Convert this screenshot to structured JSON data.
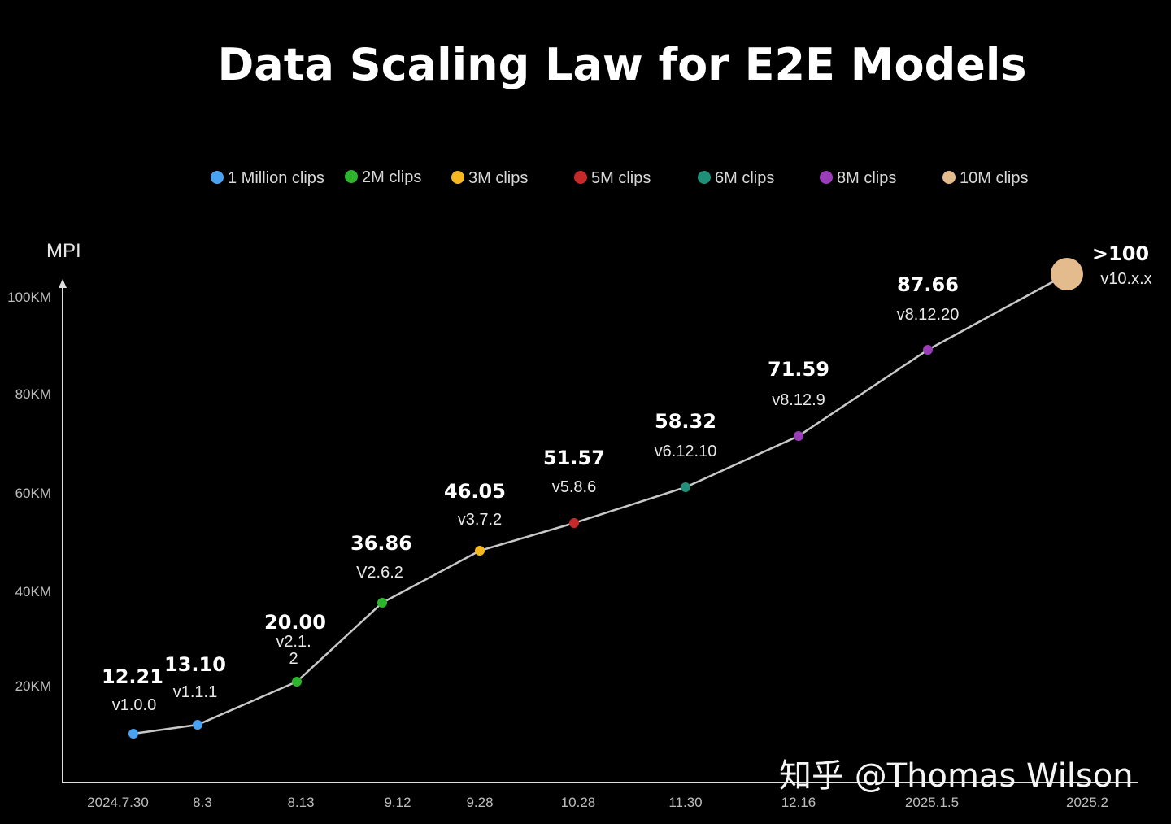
{
  "chart_data": {
    "type": "line",
    "title": "Data Scaling Law for E2E Models",
    "ylabel": "MPI",
    "xlabel": "",
    "y_ticks": [
      "100KM",
      "80KM",
      "60KM",
      "40KM",
      "20KM"
    ],
    "ylim": [
      0,
      100
    ],
    "x_categories": [
      "2024.7.30",
      "8.3",
      "8.13",
      "9.12",
      "9.28",
      "10.28",
      "11.30",
      "12.16",
      "2025.1.5",
      "2025.2"
    ],
    "legend": [
      {
        "label": "1 Million clips",
        "color": "#4aa3f0"
      },
      {
        "label": "2M clips",
        "color": "#2db52d"
      },
      {
        "label": "3M clips",
        "color": "#f5b820"
      },
      {
        "label": "5M clips",
        "color": "#c42a2a"
      },
      {
        "label": "6M clips",
        "color": "#1f8f7a"
      },
      {
        "label": "8M clips",
        "color": "#9b3db8"
      },
      {
        "label": "10M clips",
        "color": "#e3bb8c"
      }
    ],
    "points": [
      {
        "x": "2024.7.30",
        "y": 12.21,
        "label": "12.21",
        "version": "v1.0.0",
        "group": "1 Million clips",
        "color": "#4aa3f0"
      },
      {
        "x": "8.3",
        "y": 13.1,
        "label": "13.10",
        "version": "v1.1.1",
        "group": "1 Million clips",
        "color": "#4aa3f0"
      },
      {
        "x": "8.13",
        "y": 20.0,
        "label": "20.00",
        "version": "v2.1.\n2",
        "group": "2M clips",
        "color": "#2db52d"
      },
      {
        "x": "9.12",
        "y": 36.86,
        "label": "36.86",
        "version": "V2.6.2",
        "group": "2M clips",
        "color": "#2db52d"
      },
      {
        "x": "9.28",
        "y": 46.05,
        "label": "46.05",
        "version": "v3.7.2",
        "group": "3M clips",
        "color": "#f5b820"
      },
      {
        "x": "10.28",
        "y": 51.57,
        "label": "51.57",
        "version": "v5.8.6",
        "group": "5M clips",
        "color": "#c42a2a"
      },
      {
        "x": "11.30",
        "y": 58.32,
        "label": "58.32",
        "version": "v6.12.10",
        "group": "6M clips",
        "color": "#1f8f7a"
      },
      {
        "x": "12.16",
        "y": 71.59,
        "label": "71.59",
        "version": "v8.12.9",
        "group": "8M clips",
        "color": "#9b3db8"
      },
      {
        "x": "2025.1.5",
        "y": 87.66,
        "label": "87.66",
        "version": "v8.12.20",
        "group": "8M clips",
        "color": "#9b3db8"
      },
      {
        "x": "2025.2",
        "y": 100,
        "label": ">100",
        "version": "v10.x.x",
        "group": "10M clips",
        "color": "#e3bb8c"
      }
    ],
    "grid": false,
    "legend_position": "top"
  },
  "watermark": "知乎 @Thomas Wilson"
}
